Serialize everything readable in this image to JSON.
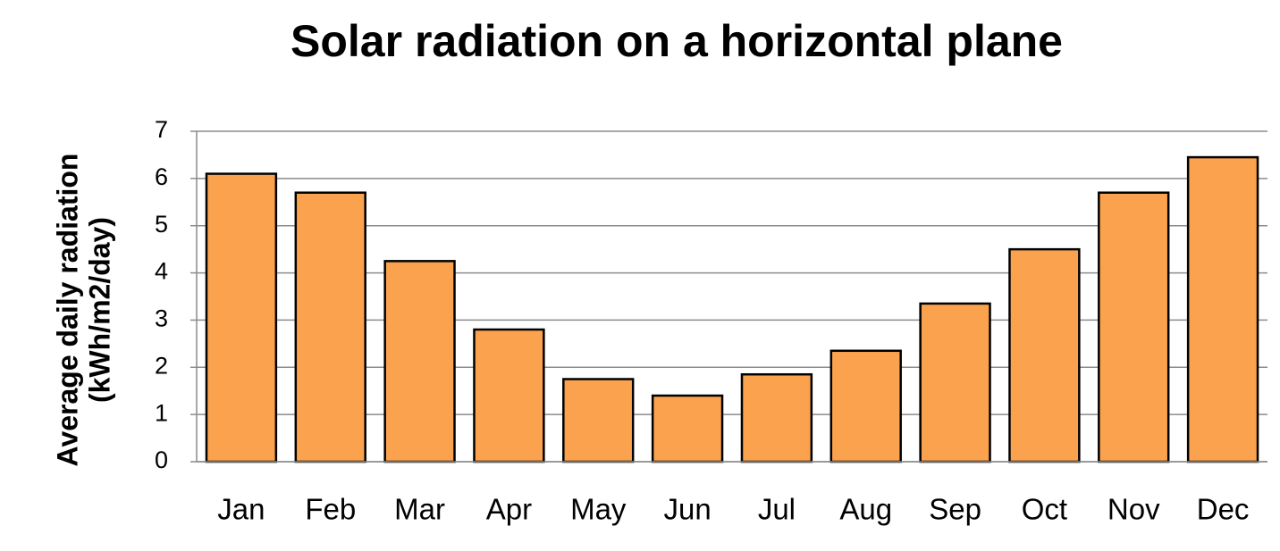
{
  "chart_data": {
    "type": "bar",
    "title": "Solar radiation on a horizontal plane",
    "ylabel": [
      "Average daily  radiation",
      "(kWh/m2/day)"
    ],
    "categories": [
      "Jan",
      "Feb",
      "Mar",
      "Apr",
      "May",
      "Jun",
      "Jul",
      "Aug",
      "Sep",
      "Oct",
      "Nov",
      "Dec"
    ],
    "values": [
      6.1,
      5.7,
      4.25,
      2.8,
      1.75,
      1.4,
      1.85,
      2.35,
      3.35,
      4.5,
      5.7,
      6.45
    ],
    "color": "#fba24e",
    "ylim": [
      0,
      7
    ],
    "yticks": [
      0,
      1,
      2,
      3,
      4,
      5,
      6,
      7
    ],
    "grid": true
  }
}
